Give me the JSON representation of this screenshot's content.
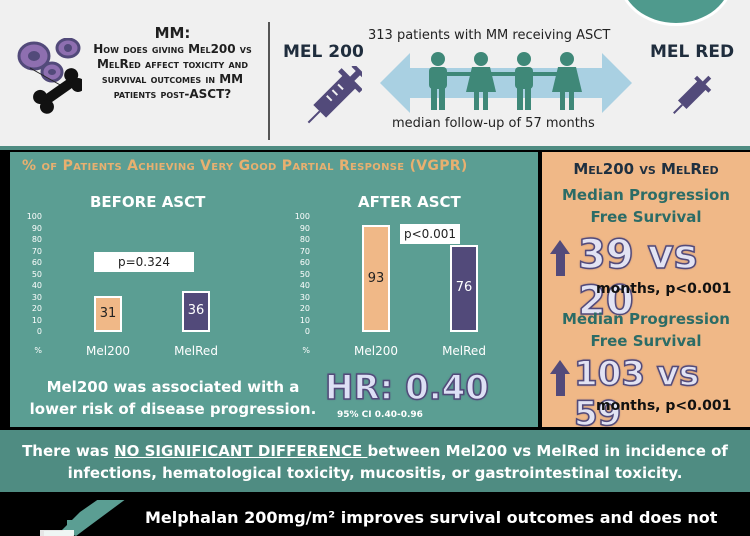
{
  "question": {
    "heading": "MM:",
    "text": "How does giving Mel200 vs MelRed affect toxicity and survival outcomes in MM patients post-ASCT?"
  },
  "arms": {
    "left": "MEL 200",
    "right": "MEL RED"
  },
  "patients": {
    "top": "313 patients with MM receiving ASCT",
    "bottom": "median follow-up of 57 months"
  },
  "vgpr_title": "% of Patients Achieving Very Good Partial Response (VGPR)",
  "chart_data": [
    {
      "type": "bar",
      "title": "BEFORE ASCT",
      "categories": [
        "Mel200",
        "MelRed"
      ],
      "values": [
        31,
        36
      ],
      "ylim": [
        0,
        100
      ],
      "yticks": [
        "100",
        "90",
        "80",
        "70",
        "60",
        "50",
        "40",
        "30",
        "20",
        "10",
        "0"
      ],
      "ylabel": "%",
      "annotation": "p=0.324"
    },
    {
      "type": "bar",
      "title": "AFTER ASCT",
      "categories": [
        "Mel200",
        "MelRed"
      ],
      "values": [
        93,
        76
      ],
      "ylim": [
        0,
        100
      ],
      "yticks": [
        "100",
        "90",
        "80",
        "70",
        "60",
        "50",
        "40",
        "30",
        "20",
        "10",
        "0"
      ],
      "ylabel": "%",
      "annotation": "p<0.001"
    }
  ],
  "association": "Mel200 was associated with a lower risk of disease progression.",
  "hr": {
    "value": "HR: 0.40",
    "ci": "95% CI 0.40-0.96"
  },
  "right_panel": {
    "title": "Mel200 vs MelRed",
    "pfs1": {
      "label": "Median Progression Free Survival",
      "value": "39 vs 20",
      "sub": "months, p<0.001"
    },
    "pfs2": {
      "label": "Median Progression Free Survival",
      "value": "103 vs 59",
      "sub": "months, p<0.001"
    }
  },
  "toxicity": {
    "before": "There was ",
    "emph": "NO SIGNIFICANT DIFFERENCE ",
    "after": "between Mel200 vs  MelRed in incidence of infections, hematological toxicity, mucositis, or gastrointestinal toxicity."
  },
  "bottom_text": "Melphalan 200mg/m² improves survival outcomes and does not",
  "colors": {
    "teal": "#5b9e93",
    "peach": "#f0b887",
    "purple": "#524a7a"
  }
}
